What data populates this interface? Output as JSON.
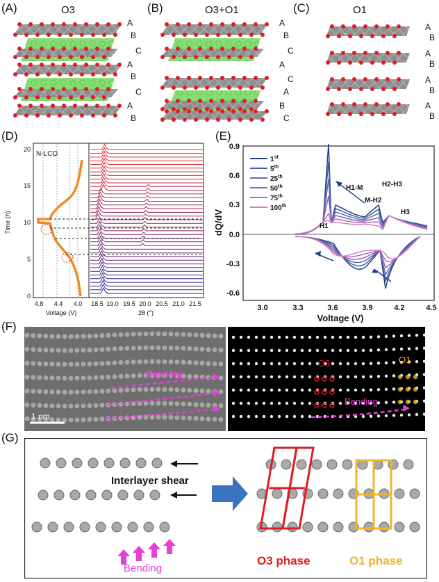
{
  "panelA": {
    "label": "(A)",
    "title": "O3",
    "stacking": [
      "A",
      "B",
      "C",
      "A",
      "B",
      "C",
      "A",
      "B"
    ]
  },
  "panelB": {
    "label": "(B)",
    "title": "O3+O1",
    "stacking": [
      "A",
      "B",
      "C",
      "A",
      "C",
      "A",
      "B",
      "C"
    ]
  },
  "panelC": {
    "label": "(C)",
    "title": "O1",
    "stacking": [
      "A",
      "B",
      "A",
      "B",
      "A",
      "B",
      "A",
      "B"
    ]
  },
  "panelD": {
    "label": "(D)",
    "sample": "N-LCO",
    "ylabel": "Time (h)",
    "xlabel": "Voltage (V)",
    "xlabel2": "2θ (°)",
    "yticks": [
      "0",
      "5",
      "10",
      "15",
      "20"
    ],
    "xticks": [
      "4.8",
      "4.4",
      "4.0"
    ],
    "xticks2": [
      "18.5",
      "19.0",
      "19.5",
      "20.0",
      "20.5",
      "21.0",
      "21.5"
    ]
  },
  "panelE": {
    "label": "(E)",
    "ylabel": "dQ/dV",
    "xlabel": "Voltage (V)",
    "yticks": [
      "0.9",
      "0.6",
      "0.3",
      "0.0",
      "-0.3",
      "-0.6"
    ],
    "xticks": [
      "3.0",
      "3.3",
      "3.6",
      "3.9",
      "4.2",
      "4.5"
    ],
    "legend": [
      {
        "n": "1",
        "sup": "st",
        "color": "#1f3f8a"
      },
      {
        "n": "5",
        "sup": "th",
        "color": "#3f63a8"
      },
      {
        "n": "25",
        "sup": "th",
        "color": "#6a6ab0"
      },
      {
        "n": "50",
        "sup": "th",
        "color": "#8a5fb0"
      },
      {
        "n": "75",
        "sup": "th",
        "color": "#b06ab8"
      },
      {
        "n": "100",
        "sup": "th",
        "color": "#d27fc8"
      }
    ],
    "annotations": [
      "H1-M",
      "M-H2",
      "H2-H3",
      "H3",
      "H1"
    ]
  },
  "panelF": {
    "label": "(F)",
    "scalebar": "1 nm",
    "bending": "Bending",
    "o3": "O3",
    "o1": "O1",
    "bending2": "Bending"
  },
  "panelG": {
    "label": "(G)",
    "shear": "Interlayer shear",
    "bending": "Bending",
    "o3phase": "O3 phase",
    "o1phase": "O1 phase"
  },
  "colors": {
    "red": "#e01b24",
    "magenta": "#e83fd8",
    "orange": "#f0b429",
    "green": "#7ddc6a",
    "blue": "#3a73c0"
  }
}
